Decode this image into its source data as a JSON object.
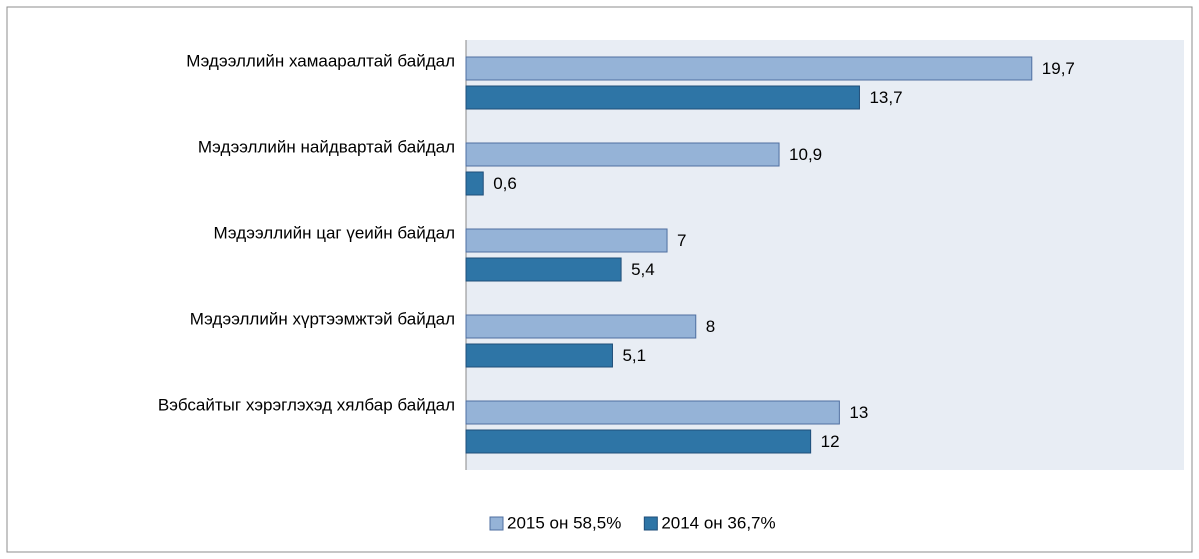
{
  "chart_data": {
    "type": "hbar",
    "categories": [
      "Мэдээллийн хамааралтай байдал",
      "Мэдээллийн найдвартай байдал",
      "Мэдээллийн цаг үеийн байдал",
      "Мэдээллийн хүртээмжтэй байдал",
      "Вэбсайтыг хэрэглэхэд хялбар байдал"
    ],
    "series": [
      {
        "name": "2015 он 58,5%",
        "color": "#95b3d7",
        "values": [
          19.7,
          10.9,
          7,
          8,
          13
        ],
        "value_labels": [
          "19,7",
          "10,9",
          "7",
          "8",
          "13"
        ]
      },
      {
        "name": "2014 он 36,7%",
        "color": "#2e75a6",
        "values": [
          13.7,
          0.6,
          5.4,
          5.1,
          12
        ],
        "value_labels": [
          "13,7",
          "0,6",
          "5,4",
          "5,1",
          "12"
        ]
      }
    ],
    "xlim": [
      0,
      25
    ],
    "legend": "bottom"
  }
}
